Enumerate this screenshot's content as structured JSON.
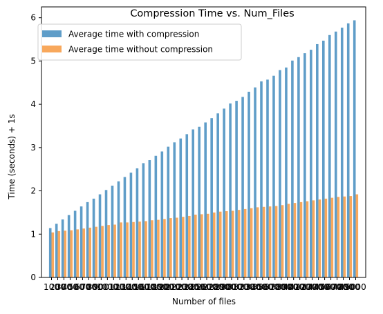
{
  "chart_data": {
    "type": "bar",
    "title": "Compression Time vs. Num_Files",
    "xlabel": "Number of files",
    "ylabel": "Time (seconds) + 1s",
    "ylim": [
      0,
      6.25
    ],
    "yticks": [
      "0",
      "1",
      "2",
      "3",
      "4",
      "5",
      "6"
    ],
    "grid": false,
    "legend_position": "upper-left",
    "categories": [
      "100",
      "200",
      "300",
      "400",
      "500",
      "600",
      "700",
      "800",
      "900",
      "1000",
      "1100",
      "1200",
      "1300",
      "1400",
      "1500",
      "1600",
      "1700",
      "1800",
      "1900",
      "2000",
      "2100",
      "2200",
      "2300",
      "2400",
      "2500",
      "2600",
      "2700",
      "2800",
      "2900",
      "3000",
      "3100",
      "3200",
      "3300",
      "3400",
      "3500",
      "3600",
      "3700",
      "3800",
      "3900",
      "4000",
      "4100",
      "4200",
      "4300",
      "4400",
      "4500",
      "4600",
      "4700",
      "4800",
      "4900",
      "5000"
    ],
    "series": [
      {
        "name": "Average time with compression",
        "color": "#5f9dc8",
        "values": [
          1.14,
          1.24,
          1.34,
          1.44,
          1.54,
          1.64,
          1.74,
          1.82,
          1.92,
          2.02,
          2.12,
          2.22,
          2.32,
          2.42,
          2.52,
          2.64,
          2.71,
          2.81,
          2.91,
          3.02,
          3.12,
          3.21,
          3.31,
          3.42,
          3.48,
          3.58,
          3.68,
          3.79,
          3.9,
          4.02,
          4.08,
          4.17,
          4.29,
          4.39,
          4.53,
          4.57,
          4.66,
          4.79,
          4.85,
          5.01,
          5.09,
          5.18,
          5.26,
          5.39,
          5.47,
          5.6,
          5.68,
          5.77,
          5.87,
          5.94
        ]
      },
      {
        "name": "Average time without compression",
        "color": "#f8a85c",
        "values": [
          1.04,
          1.07,
          1.08,
          1.09,
          1.11,
          1.13,
          1.15,
          1.17,
          1.19,
          1.21,
          1.22,
          1.27,
          1.27,
          1.28,
          1.29,
          1.3,
          1.32,
          1.33,
          1.35,
          1.37,
          1.38,
          1.4,
          1.42,
          1.45,
          1.46,
          1.47,
          1.5,
          1.52,
          1.53,
          1.54,
          1.56,
          1.58,
          1.6,
          1.62,
          1.63,
          1.64,
          1.65,
          1.67,
          1.7,
          1.72,
          1.74,
          1.76,
          1.78,
          1.8,
          1.82,
          1.84,
          1.86,
          1.87,
          1.88,
          1.92
        ]
      }
    ]
  }
}
